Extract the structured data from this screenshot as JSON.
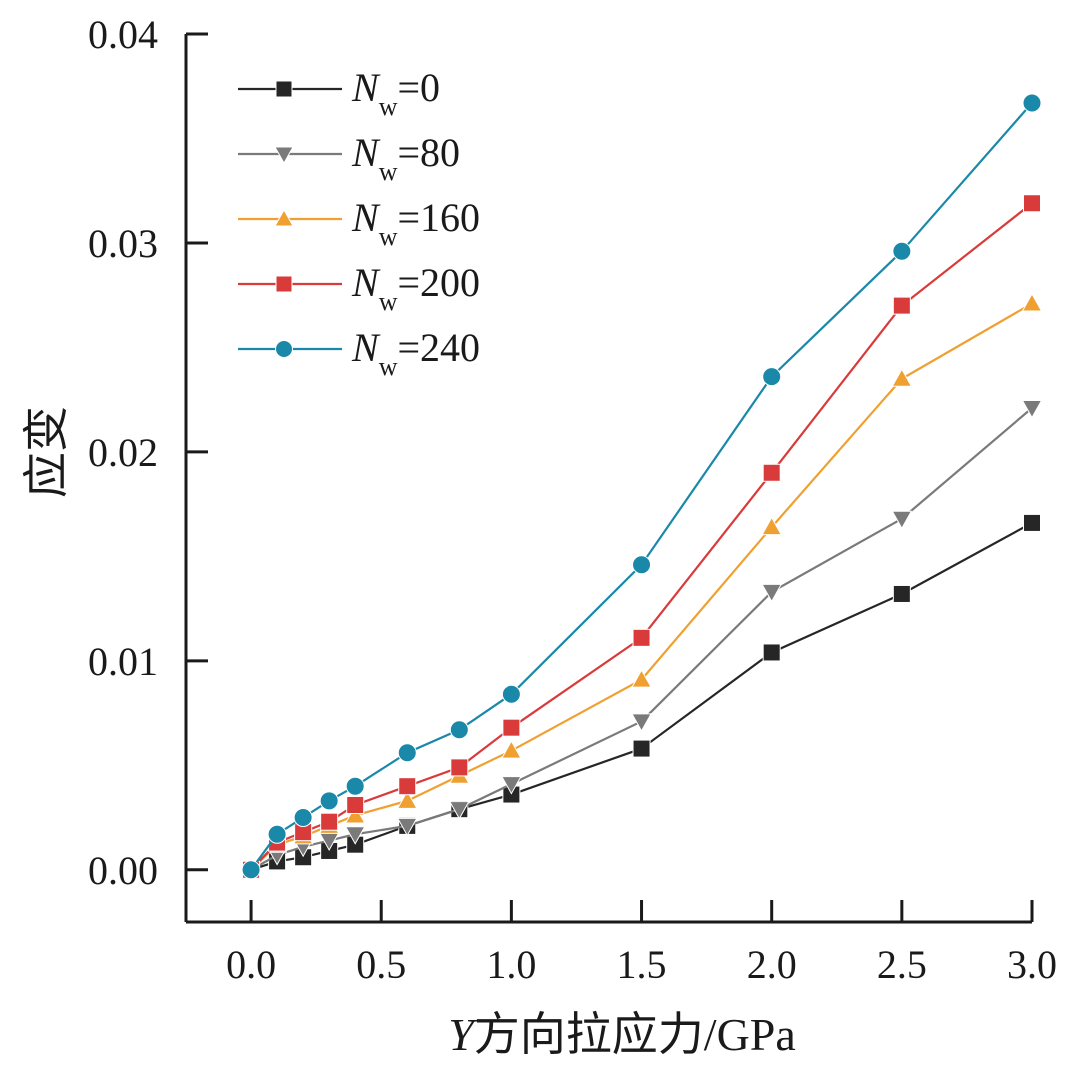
{
  "chart_data": {
    "type": "line",
    "title": "",
    "xlabel": "Y方向拉应力/GPa",
    "xlabel_var": "Y",
    "xlabel_rest": "方向拉应力/GPa",
    "ylabel": "应变",
    "xlim": [
      -0.25,
      3.0
    ],
    "ylim": [
      -0.0025,
      0.04
    ],
    "xticks": [
      0.0,
      0.5,
      1.0,
      1.5,
      2.0,
      2.5,
      3.0
    ],
    "xtick_labels": [
      "0.0",
      "0.5",
      "1.0",
      "1.5",
      "2.0",
      "2.5",
      "3.0"
    ],
    "yticks": [
      0.0,
      0.01,
      0.02,
      0.03,
      0.04
    ],
    "ytick_labels": [
      "0.00",
      "0.01",
      "0.02",
      "0.03",
      "0.04"
    ],
    "grid": false,
    "legend_position": "top-left",
    "x": [
      0.0,
      0.1,
      0.2,
      0.3,
      0.4,
      0.6,
      0.8,
      1.0,
      1.5,
      2.0,
      2.5,
      3.0
    ],
    "series": [
      {
        "name": "Nw=0",
        "var": "N",
        "sub": "w",
        "eq": "=0",
        "color": "#262626",
        "marker": "square",
        "values": [
          0.0,
          0.0004,
          0.0006,
          0.0009,
          0.0012,
          0.0021,
          0.0029,
          0.0036,
          0.0058,
          0.0104,
          0.0132,
          0.0166
        ]
      },
      {
        "name": "Nw=80",
        "var": "N",
        "sub": "w",
        "eq": "=80",
        "color": "#7a7a7a",
        "marker": "triangle-down",
        "values": [
          0.0,
          0.0007,
          0.0011,
          0.0014,
          0.0017,
          0.0021,
          0.0029,
          0.0041,
          0.0071,
          0.0133,
          0.0168,
          0.0221
        ]
      },
      {
        "name": "Nw=160",
        "var": "N",
        "sub": "w",
        "eq": "=160",
        "color": "#f0a030",
        "marker": "triangle-up",
        "values": [
          0.0,
          0.0012,
          0.0016,
          0.0021,
          0.0026,
          0.0033,
          0.0045,
          0.0057,
          0.0091,
          0.0164,
          0.0235,
          0.0271
        ]
      },
      {
        "name": "Nw=200",
        "var": "N",
        "sub": "w",
        "eq": "=200",
        "color": "#d93a3a",
        "marker": "square",
        "values": [
          0.0,
          0.0013,
          0.0018,
          0.0023,
          0.0031,
          0.004,
          0.0049,
          0.0068,
          0.0111,
          0.019,
          0.027,
          0.0319
        ]
      },
      {
        "name": "Nw=240",
        "var": "N",
        "sub": "w",
        "eq": "=240",
        "color": "#1a88a8",
        "marker": "circle",
        "values": [
          0.0,
          0.0017,
          0.0025,
          0.0033,
          0.004,
          0.0056,
          0.0067,
          0.0084,
          0.0146,
          0.0236,
          0.0296,
          0.0367
        ]
      }
    ]
  }
}
